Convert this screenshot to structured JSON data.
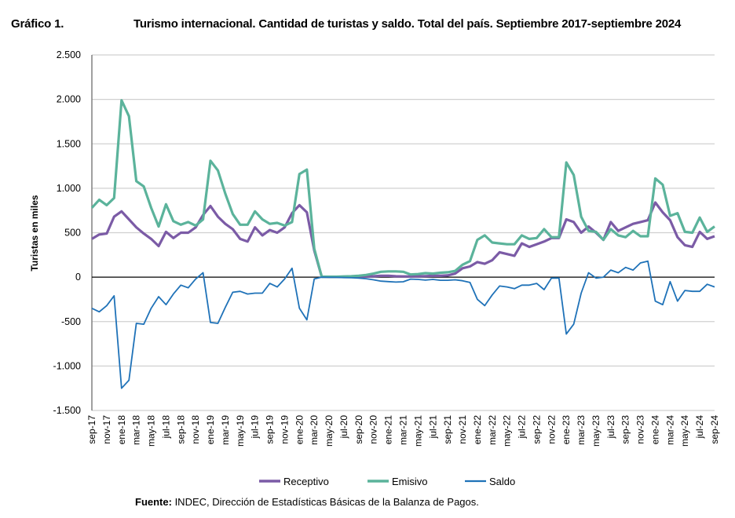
{
  "header": {
    "figure_number": "Gráfico 1.",
    "title": "Turismo internacional. Cantidad de turistas y saldo. Total del país. Septiembre 2017-septiembre 2024"
  },
  "footer": {
    "source_label": "Fuente:",
    "source_text": " INDEC, Dirección de Estadísticas Básicas de la Balanza de Pagos."
  },
  "chart_data": {
    "type": "line",
    "title": "Turismo internacional. Cantidad de turistas y saldo. Total del país. Septiembre 2017-septiembre 2024",
    "ylabel": "Turistas en miles",
    "xlabel": "",
    "ylim": [
      -1500,
      2500
    ],
    "yticks": [
      2500,
      2000,
      1500,
      1000,
      500,
      0,
      -500,
      -1000,
      -1500
    ],
    "ytick_labels": [
      "2.500",
      "2.000",
      "1.500",
      "1.000",
      "500",
      "0",
      "-500",
      "-1.000",
      "-1.500"
    ],
    "x_start": "sep-17",
    "x_end": "sep-24",
    "x_count": 85,
    "xtick_labels": [
      "sep-17",
      "nov-17",
      "ene-18",
      "mar-18",
      "may-18",
      "jul-18",
      "sep-18",
      "nov-18",
      "ene-19",
      "mar-19",
      "may-19",
      "jul-19",
      "sep-19",
      "nov-19",
      "ene-20",
      "mar-20",
      "may-20",
      "jul-20",
      "sep-20",
      "nov-20",
      "ene-21",
      "mar-21",
      "may-21",
      "jul-21",
      "sep-21",
      "nov-21",
      "ene-22",
      "mar-22",
      "may-22",
      "jul-22",
      "sep-22",
      "nov-22",
      "ene-23",
      "mar-23",
      "may-23",
      "jul-23",
      "sep-23",
      "nov-23",
      "ene-24",
      "mar-24",
      "may-24",
      "jul-24",
      "sep-24"
    ],
    "grid": true,
    "legend_position": "bottom",
    "series": [
      {
        "name": "Receptivo",
        "color": "#7B5BA6",
        "values": [
          430,
          480,
          490,
          680,
          740,
          650,
          560,
          490,
          430,
          350,
          510,
          440,
          500,
          500,
          560,
          700,
          800,
          680,
          600,
          540,
          430,
          400,
          560,
          470,
          530,
          500,
          560,
          720,
          810,
          730,
          300,
          5,
          3,
          3,
          3,
          3,
          5,
          8,
          10,
          15,
          15,
          10,
          8,
          8,
          10,
          12,
          15,
          15,
          20,
          40,
          100,
          120,
          170,
          150,
          190,
          280,
          260,
          240,
          380,
          340,
          370,
          400,
          440,
          440,
          650,
          620,
          500,
          570,
          500,
          420,
          620,
          520,
          560,
          600,
          620,
          640,
          840,
          730,
          640,
          450,
          360,
          340,
          510,
          430,
          460
        ]
      },
      {
        "name": "Emisivo",
        "color": "#5BB39B",
        "values": [
          780,
          870,
          810,
          890,
          1990,
          1810,
          1080,
          1020,
          780,
          570,
          820,
          630,
          590,
          620,
          580,
          650,
          1310,
          1200,
          940,
          710,
          590,
          590,
          740,
          650,
          600,
          610,
          580,
          620,
          1160,
          1210,
          320,
          5,
          5,
          5,
          8,
          10,
          15,
          25,
          40,
          60,
          65,
          65,
          60,
          30,
          35,
          45,
          40,
          50,
          55,
          70,
          140,
          180,
          420,
          470,
          390,
          380,
          370,
          370,
          470,
          430,
          440,
          540,
          450,
          450,
          1290,
          1150,
          680,
          520,
          510,
          420,
          540,
          470,
          450,
          520,
          460,
          460,
          1110,
          1040,
          690,
          720,
          510,
          500,
          670,
          510,
          570
        ]
      },
      {
        "name": "Saldo",
        "color": "#1F72B8",
        "values": [
          -350,
          -390,
          -320,
          -210,
          -1250,
          -1160,
          -520,
          -530,
          -350,
          -220,
          -310,
          -190,
          -90,
          -120,
          -20,
          50,
          -510,
          -520,
          -340,
          -170,
          -160,
          -190,
          -180,
          -180,
          -70,
          -110,
          -20,
          100,
          -350,
          -480,
          -20,
          0,
          -2,
          -2,
          -5,
          -7,
          -10,
          -17,
          -30,
          -45,
          -50,
          -55,
          -52,
          -22,
          -25,
          -33,
          -25,
          -35,
          -35,
          -30,
          -40,
          -60,
          -250,
          -320,
          -200,
          -100,
          -110,
          -130,
          -90,
          -90,
          -70,
          -140,
          -10,
          -10,
          -640,
          -530,
          -180,
          50,
          -10,
          0,
          80,
          50,
          110,
          80,
          160,
          180,
          -270,
          -310,
          -50,
          -270,
          -150,
          -160,
          -160,
          -80,
          -110
        ]
      }
    ]
  }
}
